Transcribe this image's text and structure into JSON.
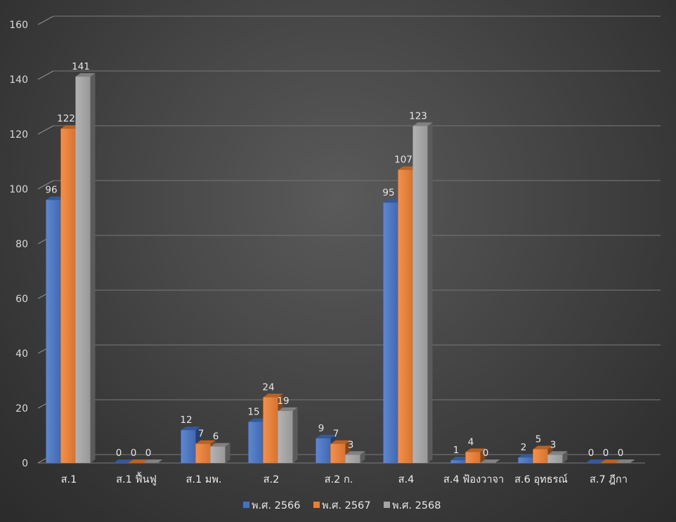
{
  "chart_data": {
    "type": "bar",
    "title": "",
    "xlabel": "",
    "ylabel": "",
    "ylim": [
      0,
      160
    ],
    "yticks": [
      0,
      20,
      40,
      60,
      80,
      100,
      120,
      140,
      160
    ],
    "grid": true,
    "legend_position": "bottom",
    "style": "3d-clustered-column",
    "categories": [
      "ส.1",
      "ส.1 ฟื้นฟู",
      "ส.1 มพ.",
      "ส.2",
      "ส.2 ก.",
      "ส.4",
      "ส.4 ฟ้องวาจา",
      "ส.6 อุทธรณ์",
      "ส.7 ฎีกา"
    ],
    "series": [
      {
        "name": "พ.ศ. 2566",
        "color": "#4472c4",
        "values": [
          96,
          0,
          12,
          15,
          9,
          95,
          1,
          2,
          0
        ]
      },
      {
        "name": "พ.ศ. 2567",
        "color": "#ed7d31",
        "values": [
          122,
          0,
          7,
          24,
          7,
          107,
          4,
          5,
          0
        ]
      },
      {
        "name": "พ.ศ. 2568",
        "color": "#a5a5a5",
        "values": [
          141,
          0,
          6,
          19,
          3,
          123,
          0,
          3,
          0
        ]
      }
    ]
  }
}
